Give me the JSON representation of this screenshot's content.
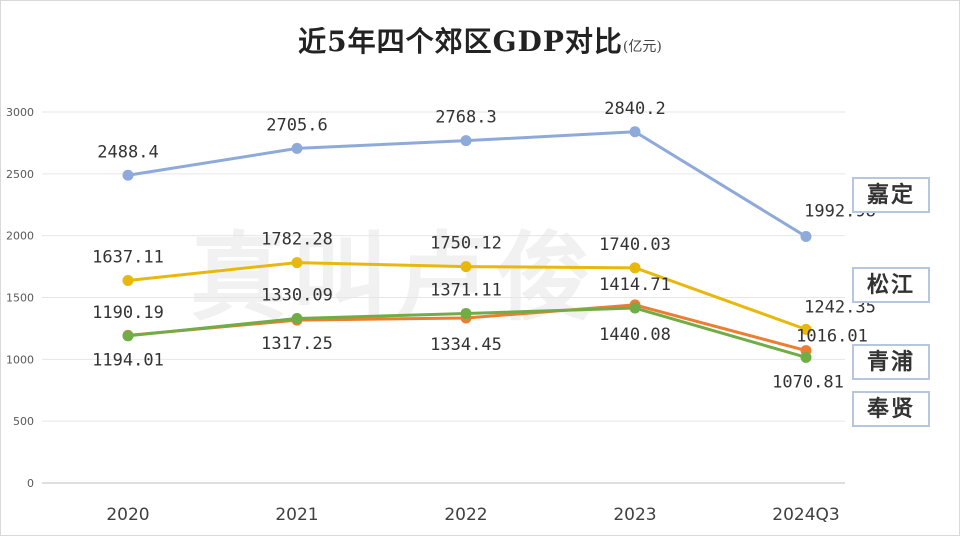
{
  "title": "近5年四个郊区GDP对比",
  "unit": "(亿元)",
  "watermark": "真叫卢俊",
  "chart_data": {
    "type": "line",
    "categories": [
      "2020",
      "2021",
      "2022",
      "2023",
      "2024Q3"
    ],
    "ylim": [
      0,
      3000
    ],
    "yticks": [
      0,
      500,
      1000,
      1500,
      2000,
      2500,
      3000
    ],
    "grid": true,
    "legend_position": "right",
    "series": [
      {
        "name": "嘉定",
        "color": "#8eaadb",
        "values": [
          2488.4,
          2705.6,
          2768.3,
          2840.2,
          1992.98
        ],
        "labels": [
          "2488.4",
          "2705.6",
          "2768.3",
          "2840.2",
          "1992.98"
        ]
      },
      {
        "name": "松江",
        "color": "#e8b80c",
        "values": [
          1637.11,
          1782.28,
          1750.12,
          1740.03,
          1242.35
        ],
        "labels": [
          "1637.11",
          "1782.28",
          "1750.12",
          "1740.03",
          "1242.35"
        ]
      },
      {
        "name": "青浦",
        "color": "#ed7d31",
        "values": [
          1194.01,
          1317.25,
          1334.45,
          1440.08,
          1070.81
        ],
        "labels": [
          "1194.01",
          "1317.25",
          "1334.45",
          "1440.08",
          "1070.81"
        ]
      },
      {
        "name": "奉贤",
        "color": "#70ad47",
        "values": [
          1190.19,
          1330.09,
          1371.11,
          1414.71,
          1016.01
        ],
        "labels": [
          "1190.19",
          "1330.09",
          "1371.11",
          "1414.71",
          "1016.01"
        ]
      }
    ]
  }
}
